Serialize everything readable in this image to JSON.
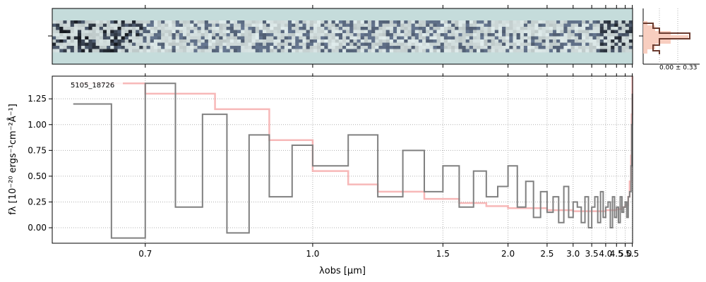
{
  "chart_data": [
    {
      "type": "line",
      "panel": "spectrum",
      "title": "",
      "xlabel": "λobs [μm]",
      "ylabel": "fλ [10⁻²⁰ ergs⁻¹cm⁻²Å⁻¹]",
      "xscale": "reciprocal",
      "xlim": [
        0.6,
        5.52
      ],
      "ylim": [
        -0.15,
        1.47
      ],
      "xticks": [
        {
          "v": 0.7,
          "label": "0.7"
        },
        {
          "v": 1.0,
          "label": "1.0"
        },
        {
          "v": 1.5,
          "label": "1.5"
        },
        {
          "v": 2.0,
          "label": "2.0"
        },
        {
          "v": 2.5,
          "label": "2.5"
        },
        {
          "v": 3.0,
          "label": "3.0"
        },
        {
          "v": 3.5,
          "label": "3.5"
        },
        {
          "v": 4.0,
          "label": "4.0"
        },
        {
          "v": 4.5,
          "label": "4.5"
        },
        {
          "v": 5.0,
          "label": "5.0"
        },
        {
          "v": 5.5,
          "label": "5.5"
        }
      ],
      "yticks": [
        {
          "v": 0.0,
          "label": "0.00"
        },
        {
          "v": 0.25,
          "label": "0.25"
        },
        {
          "v": 0.5,
          "label": "0.50"
        },
        {
          "v": 0.75,
          "label": "0.75"
        },
        {
          "v": 1.0,
          "label": "1.00"
        },
        {
          "v": 1.25,
          "label": "1.25"
        }
      ],
      "grid": true,
      "annotation": "5105_18726",
      "series": [
        {
          "role": "data",
          "color": "#808080",
          "x": [
            0.62,
            0.66,
            0.7,
            0.74,
            0.78,
            0.82,
            0.86,
            0.9,
            0.95,
            1.0,
            1.1,
            1.2,
            1.3,
            1.4,
            1.5,
            1.6,
            1.7,
            1.8,
            1.9,
            2.0,
            2.1,
            2.2,
            2.3,
            2.4,
            2.5,
            2.6,
            2.7,
            2.8,
            2.9,
            3.0,
            3.1,
            3.2,
            3.3,
            3.4,
            3.5,
            3.6,
            3.7,
            3.8,
            3.9,
            4.0,
            4.1,
            4.2,
            4.3,
            4.4,
            4.5,
            4.6,
            4.7,
            4.8,
            4.9,
            5.0,
            5.1,
            5.2,
            5.3,
            5.4,
            5.45,
            5.5
          ],
          "y": [
            1.2,
            -0.1,
            1.4,
            0.2,
            1.1,
            -0.05,
            0.9,
            0.3,
            0.8,
            0.6,
            0.9,
            0.3,
            0.75,
            0.35,
            0.6,
            0.2,
            0.55,
            0.3,
            0.4,
            0.6,
            0.2,
            0.45,
            0.1,
            0.35,
            0.15,
            0.3,
            0.05,
            0.4,
            0.1,
            0.25,
            0.2,
            0.05,
            0.3,
            0.0,
            0.2,
            0.3,
            0.05,
            0.35,
            0.1,
            0.2,
            0.25,
            0.0,
            0.3,
            0.1,
            0.2,
            0.05,
            0.3,
            0.15,
            0.2,
            0.25,
            0.1,
            0.3,
            0.35,
            0.6,
            1.0,
            1.3
          ]
        },
        {
          "role": "model",
          "color": "#f4a0a0",
          "x": [
            0.62,
            0.7,
            0.8,
            0.9,
            1.0,
            1.1,
            1.2,
            1.4,
            1.6,
            1.8,
            2.0,
            2.5,
            3.0,
            3.5,
            4.0,
            4.5,
            4.8,
            5.0,
            5.2,
            5.3,
            5.4,
            5.45,
            5.5
          ],
          "y": [
            1.4,
            1.3,
            1.15,
            0.85,
            0.55,
            0.42,
            0.35,
            0.28,
            0.24,
            0.21,
            0.19,
            0.17,
            0.16,
            0.16,
            0.17,
            0.18,
            0.2,
            0.22,
            0.3,
            0.45,
            0.7,
            1.1,
            1.47
          ]
        }
      ]
    },
    {
      "type": "heatmap",
      "panel": "2d-spectrum",
      "xlim": [
        0.6,
        5.52
      ]
    },
    {
      "type": "area",
      "panel": "cross-dispersion-profile",
      "annotation": "0.00 ± 0.33"
    }
  ]
}
